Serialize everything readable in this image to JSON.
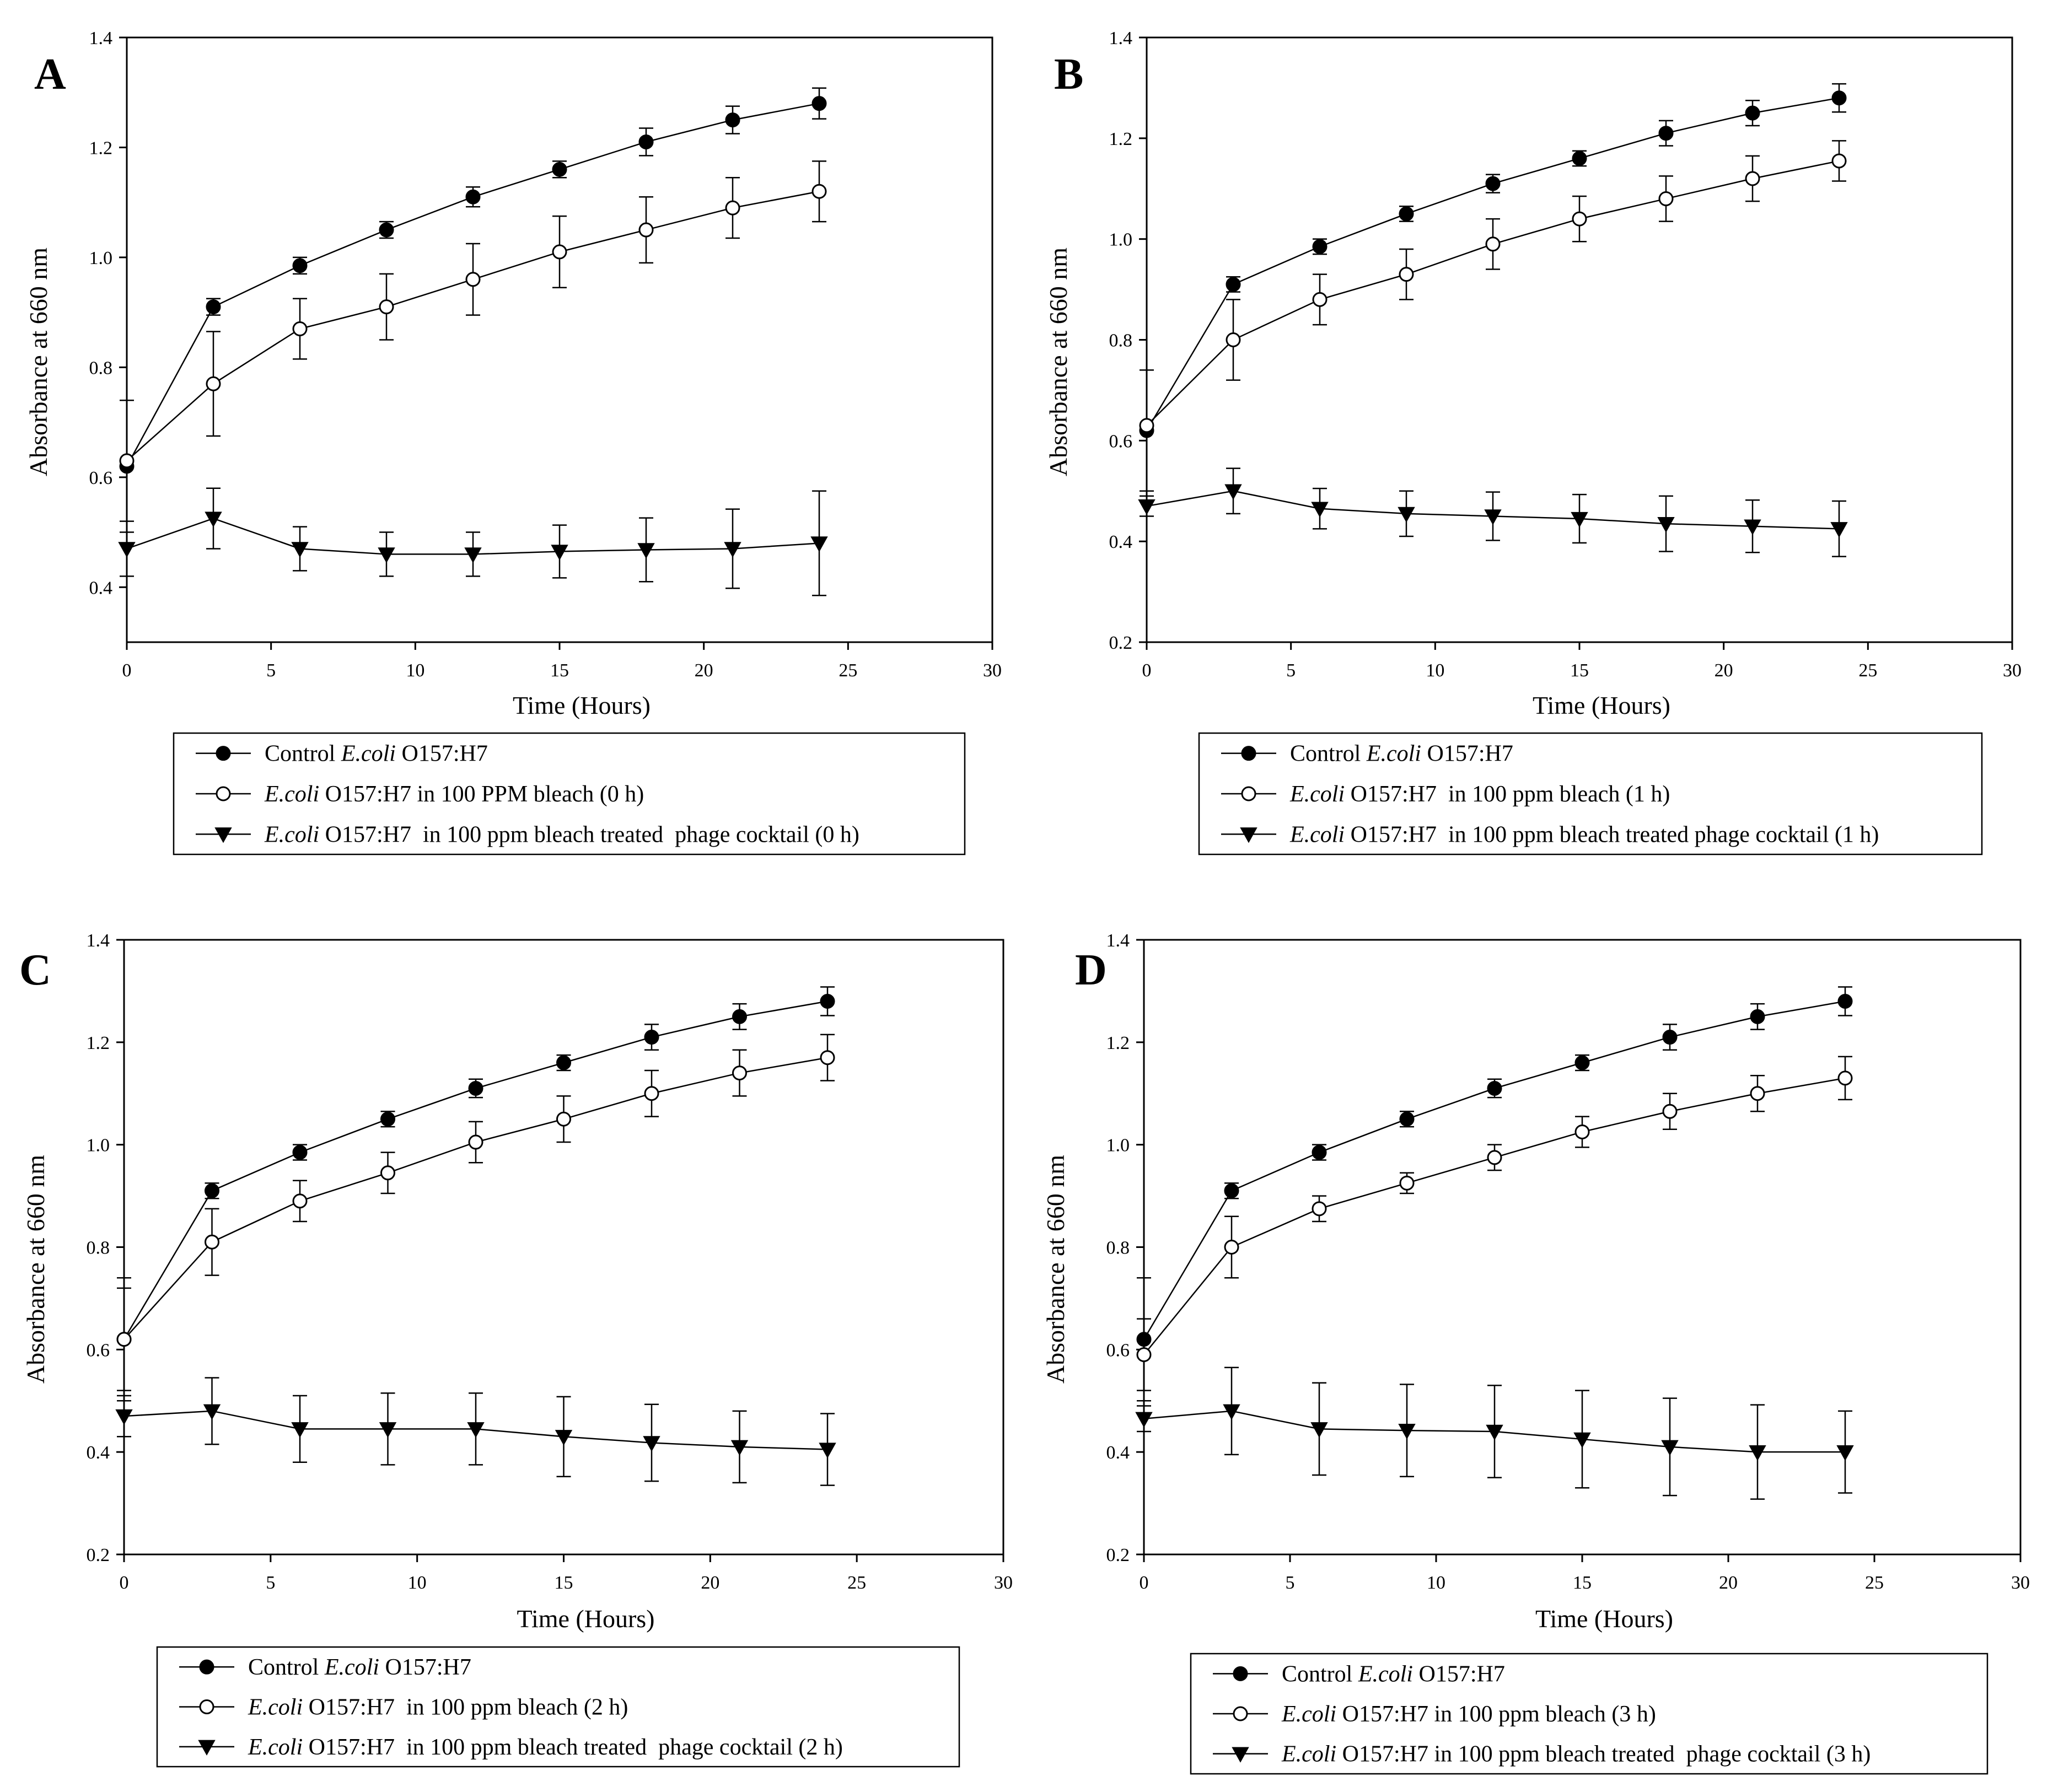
{
  "chart_data": [
    {
      "panel": "A",
      "type": "line",
      "xlabel": "Time (Hours)",
      "ylabel": "Absorbance at 660 nm",
      "xlim": [
        0,
        30
      ],
      "ylim": [
        0.3,
        1.4
      ],
      "xticks": [
        0,
        5,
        10,
        15,
        20,
        25,
        30
      ],
      "yticks": [
        0.4,
        0.6,
        0.8,
        1.0,
        1.2,
        1.4
      ],
      "ytick_labels": [
        "0.4",
        "0.6",
        "0.8",
        "1.0",
        "1.2",
        "1.4"
      ],
      "x": [
        0,
        3,
        6,
        9,
        12,
        15,
        18,
        21,
        24
      ],
      "series": [
        {
          "name": "control",
          "marker": "filled-circle",
          "legend": [
            {
              "text": "Control ",
              "italic": false
            },
            {
              "text": "E.coli",
              "italic": true
            },
            {
              "text": " O157:H7",
              "italic": false
            }
          ],
          "values": [
            0.62,
            0.91,
            0.985,
            1.05,
            1.11,
            1.16,
            1.21,
            1.25,
            1.28
          ],
          "errors": [
            0.12,
            0.015,
            0.015,
            0.015,
            0.018,
            0.015,
            0.025,
            0.025,
            0.028
          ]
        },
        {
          "name": "bleach",
          "marker": "open-circle",
          "legend": [
            {
              "text": "E.coli",
              "italic": true
            },
            {
              "text": " O157:H7 in 100 PPM bleach (0 h)",
              "italic": false
            }
          ],
          "values": [
            0.63,
            0.77,
            0.87,
            0.91,
            0.96,
            1.01,
            1.05,
            1.09,
            1.12
          ],
          "errors": [
            0.0,
            0.095,
            0.055,
            0.06,
            0.065,
            0.065,
            0.06,
            0.055,
            0.055
          ]
        },
        {
          "name": "phage",
          "marker": "filled-triangle-down",
          "legend": [
            {
              "text": "E.coli",
              "italic": true
            },
            {
              "text": " O157:H7  in 100 ppm bleach treated  phage cocktail (0 h)",
              "italic": false
            }
          ],
          "values": [
            0.47,
            0.525,
            0.47,
            0.46,
            0.46,
            0.465,
            0.468,
            0.47,
            0.48
          ],
          "errors": [
            0.05,
            0.055,
            0.04,
            0.04,
            0.04,
            0.048,
            0.058,
            0.072,
            0.095
          ]
        }
      ]
    },
    {
      "panel": "B",
      "type": "line",
      "xlabel": "Time (Hours)",
      "ylabel": "Absorbance at 660 nm",
      "xlim": [
        0,
        30
      ],
      "ylim": [
        0.2,
        1.4
      ],
      "xticks": [
        0,
        5,
        10,
        15,
        20,
        25,
        30
      ],
      "yticks": [
        0.2,
        0.4,
        0.6,
        0.8,
        1.0,
        1.2,
        1.4
      ],
      "ytick_labels": [
        "0.2",
        "0.4",
        "0.6",
        "0.8",
        "1.0",
        "1.2",
        "1.4"
      ],
      "x": [
        0,
        3,
        6,
        9,
        12,
        15,
        18,
        21,
        24
      ],
      "series": [
        {
          "name": "control",
          "marker": "filled-circle",
          "legend": [
            {
              "text": "Control ",
              "italic": false
            },
            {
              "text": "E.coli",
              "italic": true
            },
            {
              "text": " O157:H7",
              "italic": false
            }
          ],
          "values": [
            0.62,
            0.91,
            0.985,
            1.05,
            1.11,
            1.16,
            1.21,
            1.25,
            1.28
          ],
          "errors": [
            0.12,
            0.015,
            0.015,
            0.015,
            0.018,
            0.015,
            0.025,
            0.025,
            0.028
          ]
        },
        {
          "name": "bleach",
          "marker": "open-circle",
          "legend": [
            {
              "text": "E.coli",
              "italic": true
            },
            {
              "text": " O157:H7  in 100 ppm bleach (1 h)",
              "italic": false
            }
          ],
          "values": [
            0.63,
            0.8,
            0.88,
            0.93,
            0.99,
            1.04,
            1.08,
            1.12,
            1.155
          ],
          "errors": [
            0.0,
            0.08,
            0.05,
            0.05,
            0.05,
            0.045,
            0.045,
            0.045,
            0.04
          ]
        },
        {
          "name": "phage",
          "marker": "filled-triangle-down",
          "legend": [
            {
              "text": "E.coli",
              "italic": true
            },
            {
              "text": " O157:H7  in 100 ppm bleach treated phage cocktail (1 h)",
              "italic": false
            }
          ],
          "values": [
            0.47,
            0.5,
            0.465,
            0.455,
            0.45,
            0.445,
            0.435,
            0.43,
            0.425
          ],
          "errors": [
            0.02,
            0.045,
            0.04,
            0.045,
            0.048,
            0.048,
            0.055,
            0.052,
            0.055
          ]
        }
      ]
    },
    {
      "panel": "C",
      "type": "line",
      "xlabel": "Time (Hours)",
      "ylabel": "Absorbance at 660 nm",
      "xlim": [
        0,
        30
      ],
      "ylim": [
        0.2,
        1.4
      ],
      "xticks": [
        0,
        5,
        10,
        15,
        20,
        25,
        30
      ],
      "yticks": [
        0.2,
        0.4,
        0.6,
        0.8,
        1.0,
        1.2,
        1.4
      ],
      "ytick_labels": [
        "0.2",
        "0.4",
        "0.6",
        "0.8",
        "1.0",
        "1.2",
        "1.4"
      ],
      "x": [
        0,
        3,
        6,
        9,
        12,
        15,
        18,
        21,
        24
      ],
      "series": [
        {
          "name": "control",
          "marker": "filled-circle",
          "legend": [
            {
              "text": "Control ",
              "italic": false
            },
            {
              "text": "E.coli",
              "italic": true
            },
            {
              "text": " O157:H7",
              "italic": false
            }
          ],
          "values": [
            0.62,
            0.91,
            0.985,
            1.05,
            1.11,
            1.16,
            1.21,
            1.25,
            1.28
          ],
          "errors": [
            0.12,
            0.015,
            0.015,
            0.015,
            0.018,
            0.015,
            0.025,
            0.025,
            0.028
          ]
        },
        {
          "name": "bleach",
          "marker": "open-circle",
          "legend": [
            {
              "text": "E.coli",
              "italic": true
            },
            {
              "text": " O157:H7  in 100 ppm bleach (2 h)",
              "italic": false
            }
          ],
          "values": [
            0.62,
            0.81,
            0.89,
            0.945,
            1.005,
            1.05,
            1.1,
            1.14,
            1.17
          ],
          "errors": [
            0.1,
            0.065,
            0.04,
            0.04,
            0.04,
            0.045,
            0.045,
            0.045,
            0.045
          ]
        },
        {
          "name": "phage",
          "marker": "filled-triangle-down",
          "legend": [
            {
              "text": "E.coli",
              "italic": true
            },
            {
              "text": " O157:H7  in 100 ppm bleach treated  phage cocktail (2 h)",
              "italic": false
            }
          ],
          "values": [
            0.47,
            0.48,
            0.445,
            0.445,
            0.445,
            0.43,
            0.418,
            0.41,
            0.405
          ],
          "errors": [
            0.04,
            0.065,
            0.065,
            0.07,
            0.07,
            0.078,
            0.075,
            0.07,
            0.07
          ]
        }
      ]
    },
    {
      "panel": "D",
      "type": "line",
      "xlabel": "Time (Hours)",
      "ylabel": "Absorbance at 660 nm",
      "xlim": [
        0,
        30
      ],
      "ylim": [
        0.2,
        1.4
      ],
      "xticks": [
        0,
        5,
        10,
        15,
        20,
        25,
        30
      ],
      "yticks": [
        0.2,
        0.4,
        0.6,
        0.8,
        1.0,
        1.2,
        1.4
      ],
      "ytick_labels": [
        "0.2",
        "0.4",
        "0.6",
        "0.8",
        "1.0",
        "1.2",
        "1.4"
      ],
      "x": [
        0,
        3,
        6,
        9,
        12,
        15,
        18,
        21,
        24
      ],
      "series": [
        {
          "name": "control",
          "marker": "filled-circle",
          "legend": [
            {
              "text": "Control ",
              "italic": false
            },
            {
              "text": "E.coli",
              "italic": true
            },
            {
              "text": " O157:H7",
              "italic": false
            }
          ],
          "values": [
            0.62,
            0.91,
            0.985,
            1.05,
            1.11,
            1.16,
            1.21,
            1.25,
            1.28
          ],
          "errors": [
            0.12,
            0.015,
            0.015,
            0.015,
            0.018,
            0.015,
            0.025,
            0.025,
            0.028
          ]
        },
        {
          "name": "bleach",
          "marker": "open-circle",
          "legend": [
            {
              "text": "E.coli",
              "italic": true
            },
            {
              "text": " O157:H7 in 100 ppm bleach (3 h)",
              "italic": false
            }
          ],
          "values": [
            0.59,
            0.8,
            0.875,
            0.925,
            0.975,
            1.025,
            1.065,
            1.1,
            1.13
          ],
          "errors": [
            0.07,
            0.06,
            0.025,
            0.02,
            0.025,
            0.03,
            0.035,
            0.035,
            0.042
          ]
        },
        {
          "name": "phage",
          "marker": "filled-triangle-down",
          "legend": [
            {
              "text": "E.coli",
              "italic": true
            },
            {
              "text": " O157:H7 in 100 ppm bleach treated  phage cocktail (3 h)",
              "italic": false
            }
          ],
          "values": [
            0.465,
            0.48,
            0.445,
            0.442,
            0.44,
            0.425,
            0.41,
            0.4,
            0.4
          ],
          "errors": [
            0.025,
            0.085,
            0.09,
            0.09,
            0.09,
            0.095,
            0.095,
            0.092,
            0.08
          ]
        }
      ]
    }
  ]
}
